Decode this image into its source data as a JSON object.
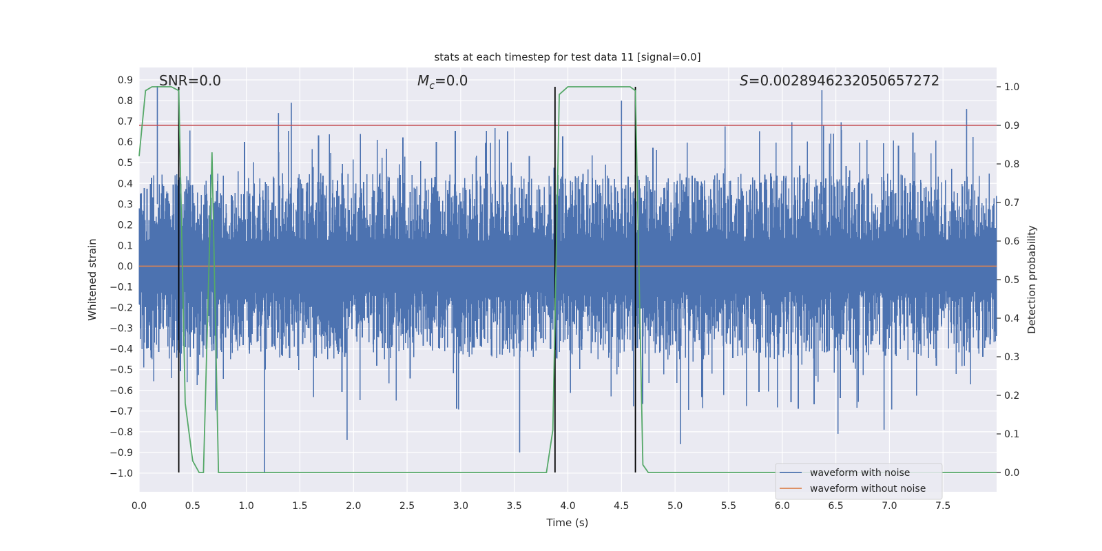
{
  "chart_data": {
    "type": "line",
    "title": "stats at each timestep for test data 11 [signal=0.0]",
    "xlabel": "Time (s)",
    "ylabel": "Whitened strain",
    "y2label": "Detection probability",
    "xlim": [
      0.0,
      8.0
    ],
    "ylim": [
      -1.09,
      0.96
    ],
    "y2lim": [
      -0.05,
      1.05
    ],
    "xticks": [
      "0.0",
      "0.5",
      "1.0",
      "1.5",
      "2.0",
      "2.5",
      "3.0",
      "3.5",
      "4.0",
      "4.5",
      "5.0",
      "5.5",
      "6.0",
      "6.5",
      "7.0",
      "7.5"
    ],
    "yticks": [
      "−1.0",
      "−0.9",
      "−0.8",
      "−0.7",
      "−0.6",
      "−0.5",
      "−0.4",
      "−0.3",
      "−0.2",
      "−0.1",
      "0.0",
      "0.1",
      "0.2",
      "0.3",
      "0.4",
      "0.5",
      "0.6",
      "0.7",
      "0.8",
      "0.9"
    ],
    "y2ticks": [
      "0.0",
      "0.1",
      "0.2",
      "0.3",
      "0.4",
      "0.5",
      "0.6",
      "0.7",
      "0.8",
      "0.9",
      "1.0"
    ],
    "annotations": {
      "snr": "SNR=0.0",
      "mc_symbol": "M",
      "mc_sub": "c",
      "mc_value": "=0.0",
      "s_symbol": "S",
      "s_value": "=0.0028946232050657272"
    },
    "threshold": {
      "value": 0.9,
      "color": "#c44e52"
    },
    "detection_markers_x": [
      0.37,
      3.88,
      4.63
    ],
    "noise_waveform": {
      "name": "waveform with noise",
      "color": "#4c72b0",
      "envelope_upper": 0.45,
      "envelope_lower": -0.45,
      "spikes": [
        {
          "x": 0.17,
          "y": 0.87
        },
        {
          "x": 1.17,
          "y": -1.0
        },
        {
          "x": 1.3,
          "y": 0.74
        },
        {
          "x": 1.42,
          "y": 0.79
        },
        {
          "x": 1.94,
          "y": -0.84
        },
        {
          "x": 3.55,
          "y": -0.9
        },
        {
          "x": 4.5,
          "y": 0.8
        },
        {
          "x": 5.05,
          "y": -0.86
        },
        {
          "x": 6.37,
          "y": 0.85
        },
        {
          "x": 6.52,
          "y": -0.81
        },
        {
          "x": 6.95,
          "y": -0.79
        },
        {
          "x": 7.72,
          "y": 0.76
        }
      ]
    },
    "clean_waveform": {
      "name": "waveform without noise",
      "color": "#dd8452",
      "value": 0.0
    },
    "probability": {
      "color": "#55a868",
      "points": [
        [
          0.0,
          0.82
        ],
        [
          0.06,
          0.99
        ],
        [
          0.12,
          1.0
        ],
        [
          0.3,
          1.0
        ],
        [
          0.37,
          0.99
        ],
        [
          0.43,
          0.18
        ],
        [
          0.5,
          0.03
        ],
        [
          0.56,
          0.0
        ],
        [
          0.6,
          0.0
        ],
        [
          0.68,
          0.83
        ],
        [
          0.74,
          0.0
        ],
        [
          0.8,
          0.0
        ],
        [
          3.75,
          0.0
        ],
        [
          3.8,
          0.0
        ],
        [
          3.86,
          0.11
        ],
        [
          3.92,
          0.98
        ],
        [
          4.0,
          1.0
        ],
        [
          4.58,
          1.0
        ],
        [
          4.63,
          0.99
        ],
        [
          4.7,
          0.02
        ],
        [
          4.75,
          0.0
        ],
        [
          7.3,
          0.0
        ],
        [
          7.45,
          0.0
        ],
        [
          7.52,
          0.0
        ],
        [
          7.62,
          0.0
        ],
        [
          8.0,
          0.0
        ]
      ]
    },
    "legend": {
      "location": "lower right",
      "entries": [
        "waveform with noise",
        "waveform without noise"
      ]
    }
  }
}
